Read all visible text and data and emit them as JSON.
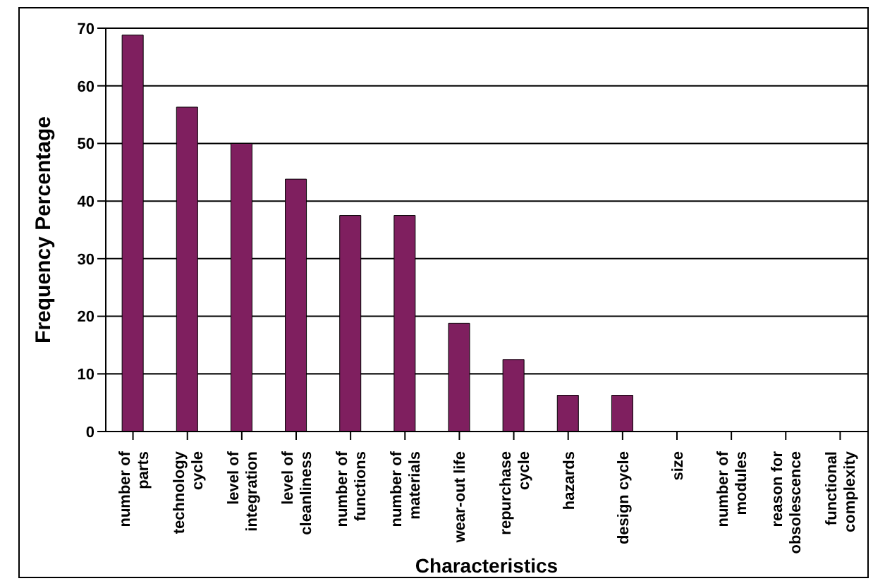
{
  "chart_data": {
    "type": "bar",
    "xlabel": "Characteristics",
    "ylabel": "Frequency Percentage",
    "categories": [
      "number of parts",
      "technology cycle",
      "level of integration",
      "level of cleanliness",
      "number of functions",
      "number of materials",
      "wear-out life",
      "repurchase cycle",
      "hazards",
      "design cycle",
      "size",
      "number of modules",
      "reason for obsolescence",
      "functional complexity"
    ],
    "values": [
      68.8,
      56.3,
      50,
      43.8,
      37.5,
      37.5,
      18.8,
      12.5,
      6.3,
      6.3,
      0,
      0,
      0,
      0
    ],
    "color": "#7f1f5f",
    "ylim": [
      0,
      70
    ],
    "yticks": [
      0,
      10,
      20,
      30,
      40,
      50,
      60,
      70
    ],
    "grid": "y"
  }
}
